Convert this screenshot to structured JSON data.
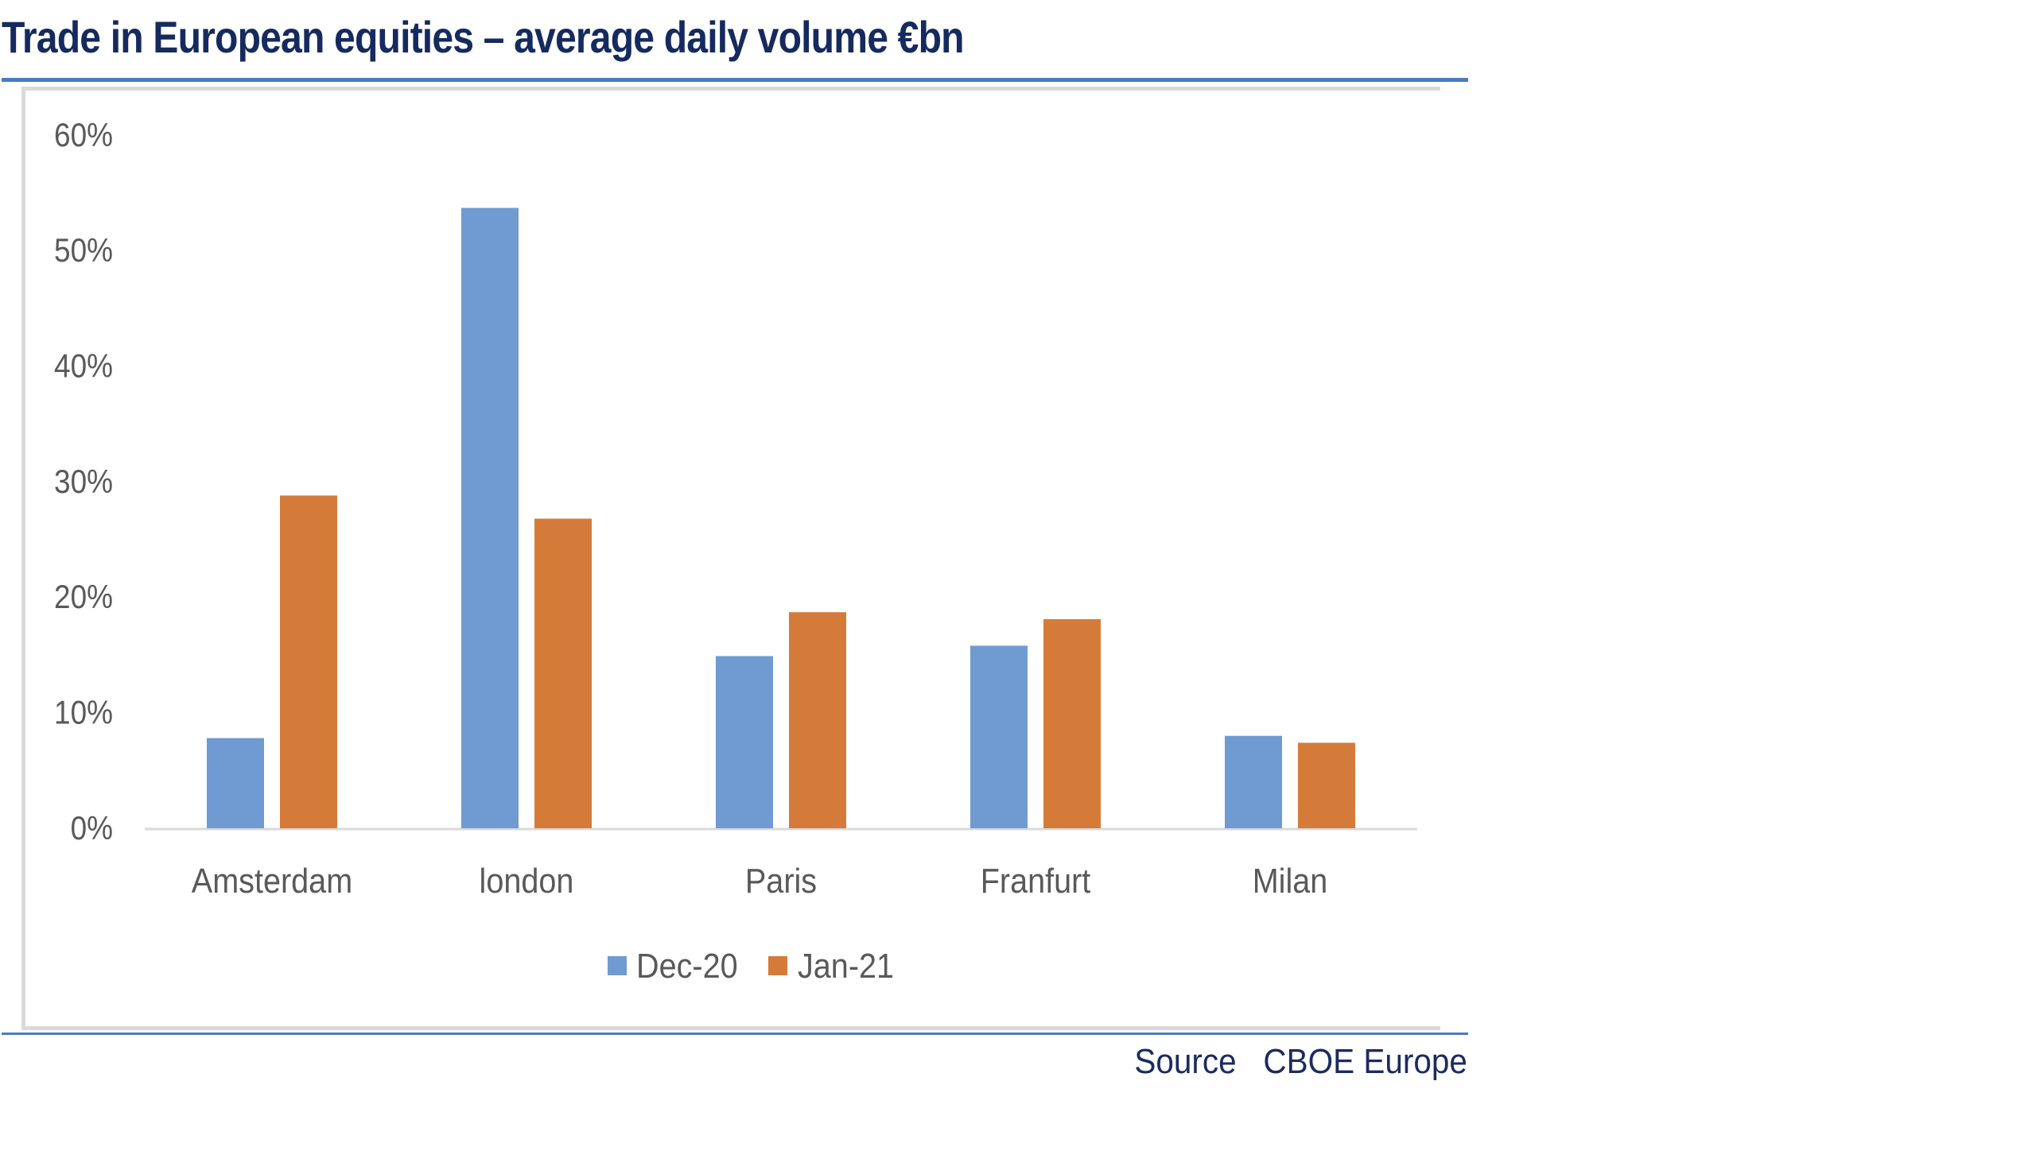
{
  "header": {
    "title": "Trade in European equities – average daily volume €bn"
  },
  "footer": {
    "source_label": "Source",
    "source_value": "CBOE Europe"
  },
  "colors": {
    "title": "#152a5e",
    "rule": "#4a7bbf",
    "series_dec20": "#6f9ad2",
    "series_jan21": "#d57b3a",
    "axis_text": "#595959",
    "axis_line": "#d9d9d9"
  },
  "chart_data": {
    "type": "bar",
    "title": "Trade in European equities – average daily volume €bn",
    "xlabel": "",
    "ylabel": "",
    "categories": [
      "Amsterdam",
      "london",
      "Paris",
      "Franfurt",
      "Milan"
    ],
    "series": [
      {
        "name": "Dec-20",
        "color": "#6f9ad2",
        "values": [
          7.8,
          53.7,
          14.9,
          15.8,
          8.0
        ]
      },
      {
        "name": "Jan-21",
        "color": "#d57b3a",
        "values": [
          28.8,
          26.8,
          18.7,
          18.1,
          7.4
        ]
      }
    ],
    "yunit": "%",
    "ylim": [
      0,
      60
    ],
    "yticks": [
      0,
      10,
      20,
      30,
      40,
      50,
      60
    ],
    "ytick_labels": [
      "0%",
      "10%",
      "20%",
      "30%",
      "40%",
      "50%",
      "60%"
    ],
    "grid": false,
    "legend": {
      "position": "bottom",
      "entries": [
        "Dec-20",
        "Jan-21"
      ]
    }
  }
}
